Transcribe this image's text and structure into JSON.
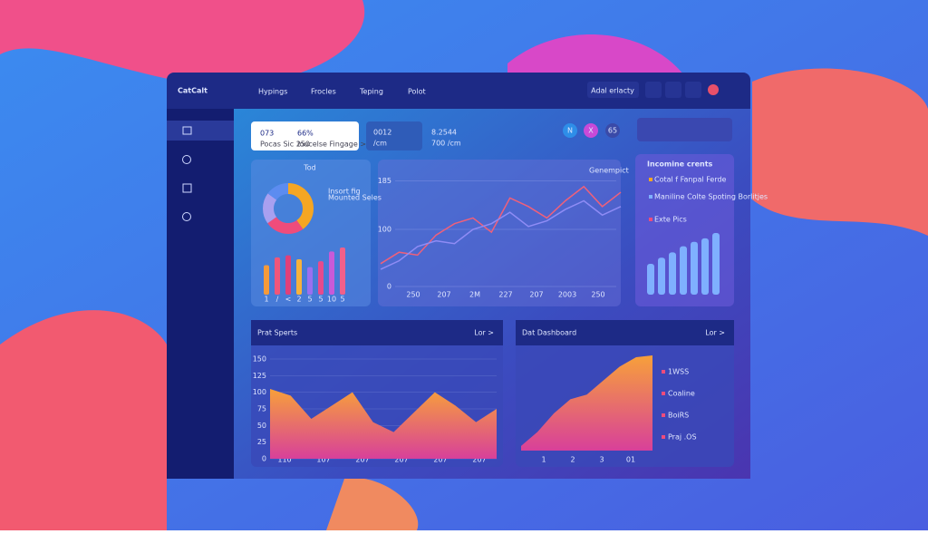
{
  "header": {
    "logo": "CatCalt",
    "nav": [
      "Hypings",
      "Frocles",
      "Teping",
      "Polot"
    ],
    "button": "Adal erlacty"
  },
  "stats": [
    {
      "value": "073",
      "value2": "66%",
      "caption": "Pocas Sic 250",
      "caption2": "Ioucelse Fingage >"
    },
    {
      "value": "0012",
      "caption": "/cm"
    },
    {
      "value": "8.2544",
      "caption": "700 /cm"
    }
  ],
  "chips": [
    "N",
    "X",
    "65"
  ],
  "donut_card": {
    "title": "Tod",
    "legend": [
      "Insort fig",
      "Mounted Seles"
    ],
    "donut": [
      40,
      25,
      20,
      15
    ],
    "bars": [
      30,
      38,
      40,
      36,
      28,
      34,
      44,
      48
    ],
    "bar_labels": [
      "1",
      "/",
      "<",
      "2",
      "5",
      "5",
      "10",
      "5"
    ]
  },
  "line_chart": {
    "legend": "Genempict",
    "ylim": [
      0,
      200
    ],
    "yticks": [
      0,
      100,
      185
    ],
    "xticks": [
      "250",
      "207",
      "2M",
      "227",
      "207",
      "2003",
      "250"
    ],
    "series": [
      {
        "color": "#f0607a",
        "values": [
          40,
          60,
          55,
          90,
          110,
          120,
          95,
          155,
          140,
          120,
          150,
          175,
          140,
          165
        ]
      },
      {
        "color": "#8f8cf5",
        "values": [
          30,
          45,
          70,
          80,
          75,
          100,
          110,
          130,
          105,
          115,
          135,
          150,
          125,
          140
        ]
      }
    ]
  },
  "income_card": {
    "title": "Incomine crents",
    "legend": [
      "Cotal f Fanpal Ferde",
      "Maniline Colte Spoting Borlitjes",
      "Exte Pics"
    ],
    "bars": [
      35,
      42,
      48,
      55,
      60,
      64,
      70
    ]
  },
  "sports_panel": {
    "title": "Prat Sperts",
    "link": "Lor >",
    "ylim": [
      0,
      150
    ],
    "yticks": [
      0,
      25,
      50,
      75,
      100,
      125,
      150
    ],
    "xticks": [
      "110",
      "107",
      "207",
      "207",
      "207",
      "207"
    ],
    "values": [
      105,
      95,
      60,
      80,
      100,
      55,
      40,
      70,
      100,
      80,
      55,
      75
    ]
  },
  "dashboard_panel": {
    "title": "Dat Dashboard",
    "link": "Lor >",
    "xticks": [
      "1",
      "2",
      "3",
      "01"
    ],
    "legend": [
      "1WSS",
      "Coaline",
      "BoiRS",
      "Praj .OS"
    ],
    "values": [
      5,
      20,
      40,
      55,
      60,
      75,
      90,
      100,
      102
    ]
  }
}
